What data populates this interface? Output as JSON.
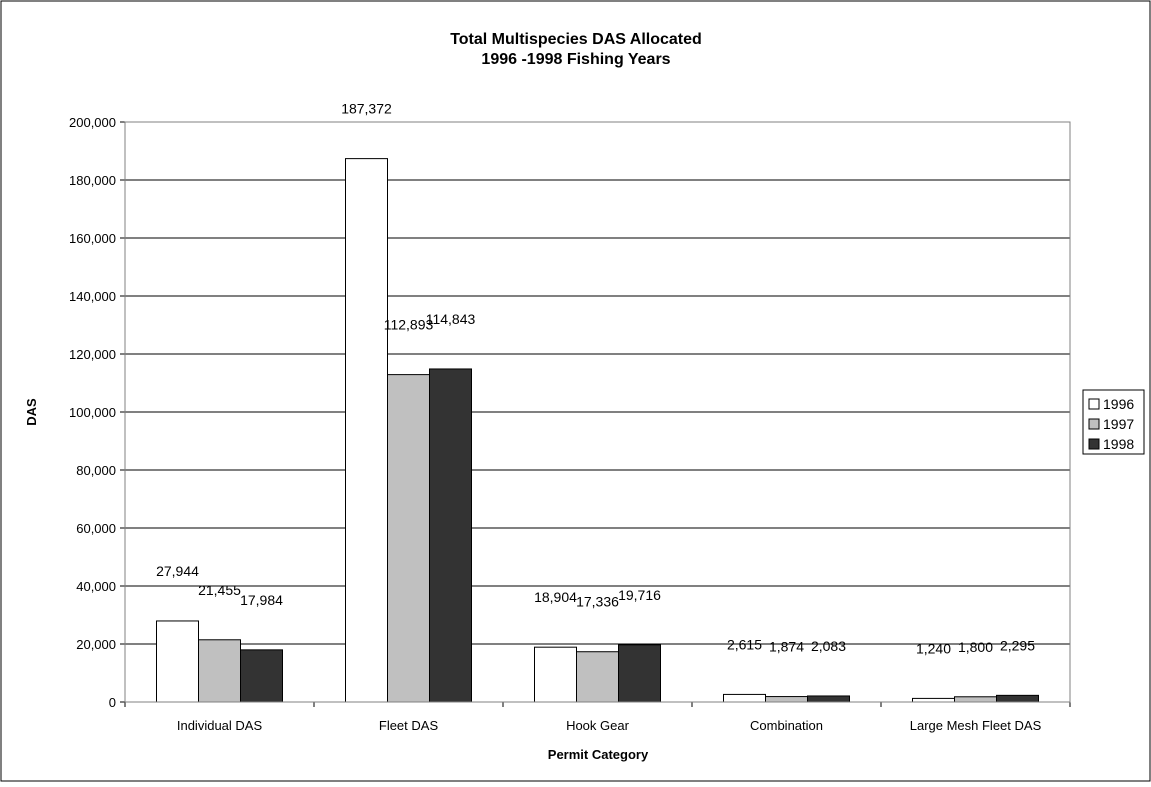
{
  "chart_data": {
    "type": "bar",
    "title": "Total Multispecies DAS Allocated",
    "subtitle": "1996 -1998 Fishing Years",
    "xlabel": "Permit Category",
    "ylabel": "DAS",
    "ylim": [
      0,
      200000
    ],
    "ytick_step": 20000,
    "yticks": [
      "0",
      "20,000",
      "40,000",
      "60,000",
      "80,000",
      "100,000",
      "120,000",
      "140,000",
      "160,000",
      "180,000",
      "200,000"
    ],
    "grid": true,
    "legend_position": "right",
    "categories": [
      "Individual DAS",
      "Fleet DAS",
      "Hook Gear",
      "Combination",
      "Large Mesh Fleet DAS"
    ],
    "series": [
      {
        "name": "1996",
        "color": "#ffffff",
        "values": [
          27944,
          187372,
          18904,
          2615,
          1240
        ],
        "labels": [
          "27,944",
          "187,372",
          "18,904",
          "2,615",
          "1,240"
        ]
      },
      {
        "name": "1997",
        "color": "#c0c0c0",
        "values": [
          21455,
          112893,
          17336,
          1874,
          1800
        ],
        "labels": [
          "21,455",
          "112,893",
          "17,336",
          "1,874",
          "1,800"
        ]
      },
      {
        "name": "1998",
        "color": "#333333",
        "values": [
          17984,
          114843,
          19716,
          2083,
          2295
        ],
        "labels": [
          "17,984",
          "114,843",
          "19,716",
          "2,083",
          "2,295"
        ]
      }
    ]
  }
}
